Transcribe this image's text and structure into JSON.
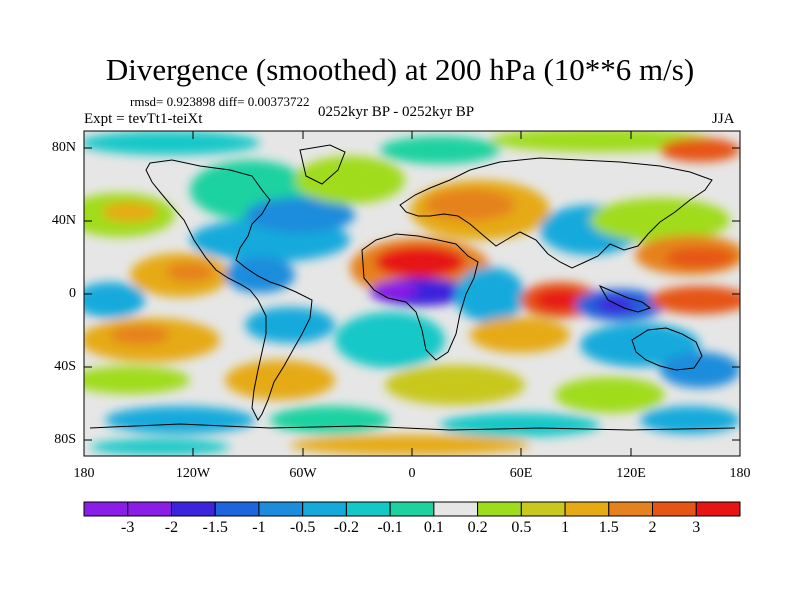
{
  "title": "Divergence (smoothed) at 200 hPa (10**6 m/s)",
  "stats": "rmsd= 0.923898 diff= 0.00373722",
  "experiment": "Expt = tevTt1-teiXt",
  "period": "0252kyr BP - 0252kyr BP",
  "season": "JJA",
  "y_ticks": [
    "80N",
    "40N",
    "0",
    "40S",
    "80S"
  ],
  "x_ticks": [
    "180",
    "120W",
    "60W",
    "0",
    "60E",
    "120E",
    "180"
  ],
  "colorbar": {
    "labels": [
      "-3",
      "-2",
      "-1.5",
      "-1",
      "-0.5",
      "-0.2",
      "-0.1",
      "0.1",
      "0.2",
      "0.5",
      "1",
      "1.5",
      "2",
      "3"
    ],
    "colors": [
      "#8a1ee6",
      "#3c23dc",
      "#1e64dc",
      "#1e8cdc",
      "#14aadc",
      "#14c8c8",
      "#1ed2a0",
      "#e6e6e6",
      "#a0dc1e",
      "#c8c81e",
      "#e6aa14",
      "#e6821e",
      "#e65514",
      "#e61414"
    ]
  }
}
